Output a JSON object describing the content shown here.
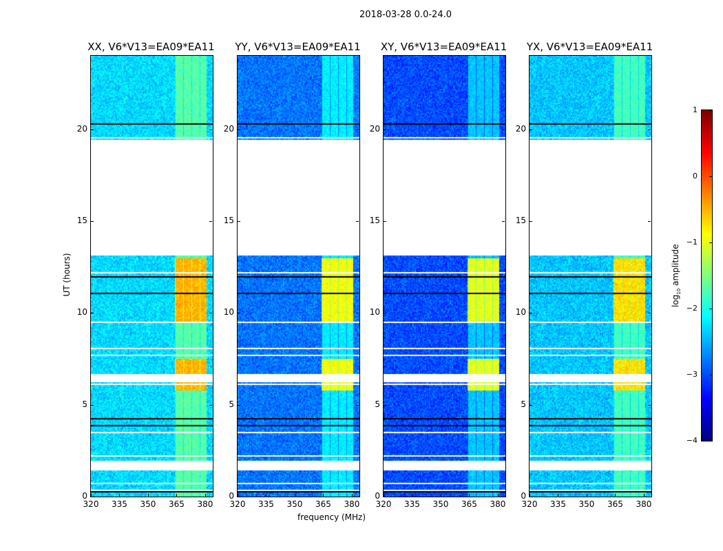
{
  "chart_data": {
    "type": "heatmap",
    "suptitle": "2018-03-28 0.0-24.0",
    "xlabel": "frequency (MHz)",
    "ylabel": "UT (hours)",
    "xlim": [
      320,
      384
    ],
    "ylim": [
      0,
      24
    ],
    "xticks": [
      "320",
      "335",
      "350",
      "365",
      "380"
    ],
    "yticks": [
      "0",
      "5",
      "10",
      "15",
      "20"
    ],
    "panels": [
      {
        "title": "XX, V6*V13=EA09*EA11",
        "baseline_log_amp": -2.3,
        "rfi_peak_log_amp": -0.2
      },
      {
        "title": "YY, V6*V13=EA09*EA11",
        "baseline_log_amp": -2.8,
        "rfi_peak_log_amp": -0.6
      },
      {
        "title": "XY, V6*V13=EA09*EA11",
        "baseline_log_amp": -3.0,
        "rfi_peak_log_amp": -0.7
      },
      {
        "title": "YX, V6*V13=EA09*EA11",
        "baseline_log_amp": -2.4,
        "rfi_peak_log_amp": -0.4
      }
    ],
    "rfi_band_mhz": [
      364,
      381
    ],
    "flagged_hours": [
      [
        1.45,
        1.95
      ],
      [
        6.2,
        6.7
      ],
      [
        13.1,
        19.4
      ]
    ],
    "colorbar": {
      "label": "log10 amplitude",
      "label_main": "log",
      "label_sub": "10",
      "label_rest": " amplitude",
      "range": [
        -4,
        1
      ],
      "ticks": [
        "1",
        "0",
        "−1",
        "−2",
        "−3",
        "−4"
      ],
      "colormap": "jet"
    }
  }
}
